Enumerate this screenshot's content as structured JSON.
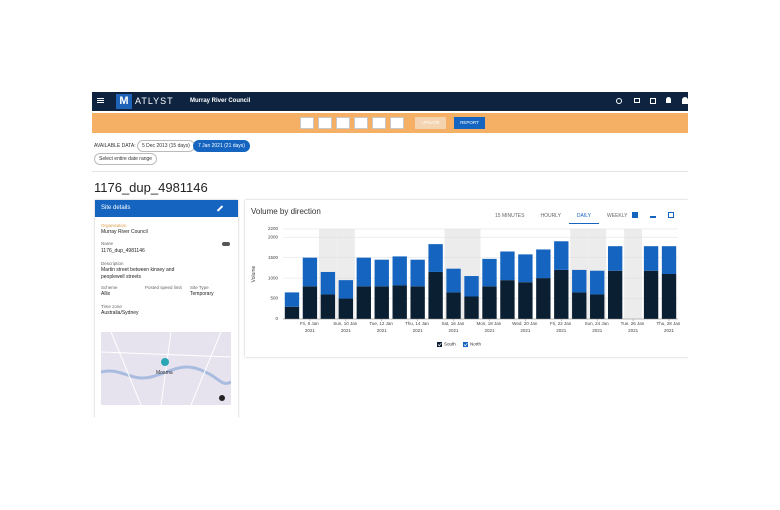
{
  "header": {
    "logo": "ATLYST",
    "council": "Murray River Council"
  },
  "toolbar": {
    "update": "UPDATE",
    "report": "REPORT"
  },
  "available": {
    "label": "AVAILABLE DATA:",
    "options": [
      "5 Dec 2013 (15 days)",
      "7 Jan 2021 (21 days)"
    ],
    "select_all": "Select entire date range"
  },
  "site_title": "1176_dup_4981146",
  "site_details": {
    "heading": "Site details",
    "fields": [
      {
        "label": "Organisation",
        "value": "Murray River Council"
      },
      {
        "label": "Name",
        "value": "1176_dup_4981146"
      },
      {
        "label": "Description",
        "value": "Martin street between kinsey and peoplewell streets"
      },
      {
        "label": "Scheme",
        "value": "Allix"
      },
      {
        "label": "Posted speed limit"
      },
      {
        "label": "Site Type",
        "value": "Temporary"
      },
      {
        "label": "Time zone",
        "value": "Australia/Sydney"
      }
    ]
  },
  "map": {
    "place": "Moama"
  },
  "chart_panel": {
    "title": "Volume by direction",
    "tabs": [
      "15 MINUTES",
      "HOURLY",
      "DAILY",
      "WEEKLY"
    ]
  },
  "chart_data": {
    "type": "stacked_bar",
    "y_label": "Volume",
    "categories": [
      null,
      "Fri, 8 Jan 2021",
      null,
      "Sun, 10 Jan 2021",
      null,
      "Tue, 12 Jan 2021",
      null,
      "Thu, 14 Jan 2021",
      null,
      "Sat, 16 Jan 2021",
      null,
      "Mon, 18 Jan 2021",
      null,
      "Wed, 20 Jan 2021",
      null,
      "Fri, 22 Jan 2021",
      null,
      "Sun, 24 Jan 2021",
      null,
      "Tue, 26 Jan 2021",
      null,
      "Thu, 28 Jan 2021"
    ],
    "series": [
      {
        "name": "South",
        "color": "#0b1f33",
        "values": [
          300,
          800,
          600,
          500,
          800,
          800,
          820,
          800,
          1150,
          650,
          550,
          800,
          950,
          900,
          1000,
          1200,
          650,
          600,
          1180,
          null,
          1180,
          1100
        ]
      },
      {
        "name": "North",
        "color": "#1565c0",
        "values": [
          350,
          700,
          550,
          450,
          700,
          650,
          710,
          650,
          680,
          580,
          500,
          670,
          700,
          680,
          700,
          700,
          550,
          580,
          600,
          null,
          600,
          680
        ]
      }
    ],
    "ylim": [
      0,
      2200
    ],
    "yticks": [
      0,
      500,
      1000,
      1500,
      2000,
      2200
    ],
    "grid": true
  }
}
